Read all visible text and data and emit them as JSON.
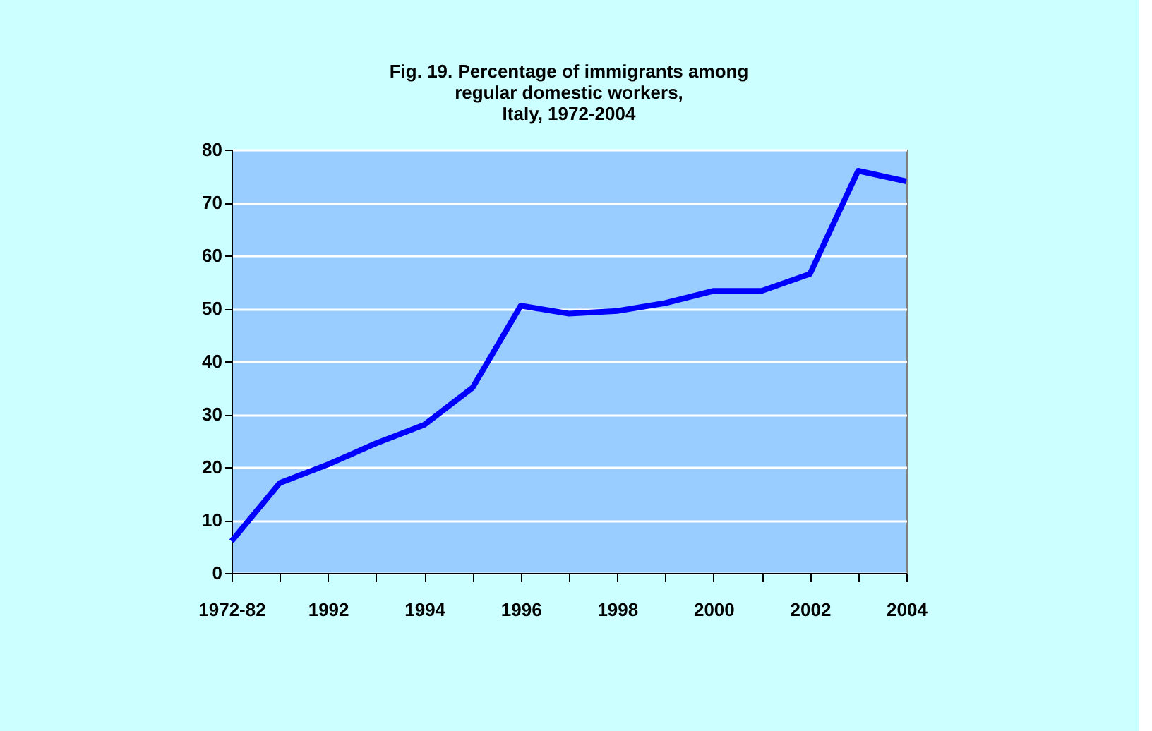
{
  "chart_data": {
    "type": "line",
    "title": [
      "Fig. 19. Percentage of immigrants among",
      "regular  domestic workers,",
      "Italy, 1972-2004"
    ],
    "categories": [
      "1972-82",
      null,
      "1992",
      null,
      "1994",
      null,
      "1996",
      null,
      "1998",
      null,
      "2000",
      null,
      "2002",
      null,
      "2004"
    ],
    "series": [
      {
        "color": "#0000ff",
        "values": [
          6,
          17,
          20.5,
          24.5,
          28,
          35,
          50.5,
          49,
          49.5,
          51,
          53.3,
          53.3,
          56.5,
          76,
          74
        ]
      }
    ],
    "ylim": [
      0,
      80
    ],
    "yticks": [
      0,
      10,
      20,
      30,
      40,
      50,
      60,
      70,
      80
    ],
    "grid": "y",
    "marker": "none",
    "line_style": "solid"
  }
}
